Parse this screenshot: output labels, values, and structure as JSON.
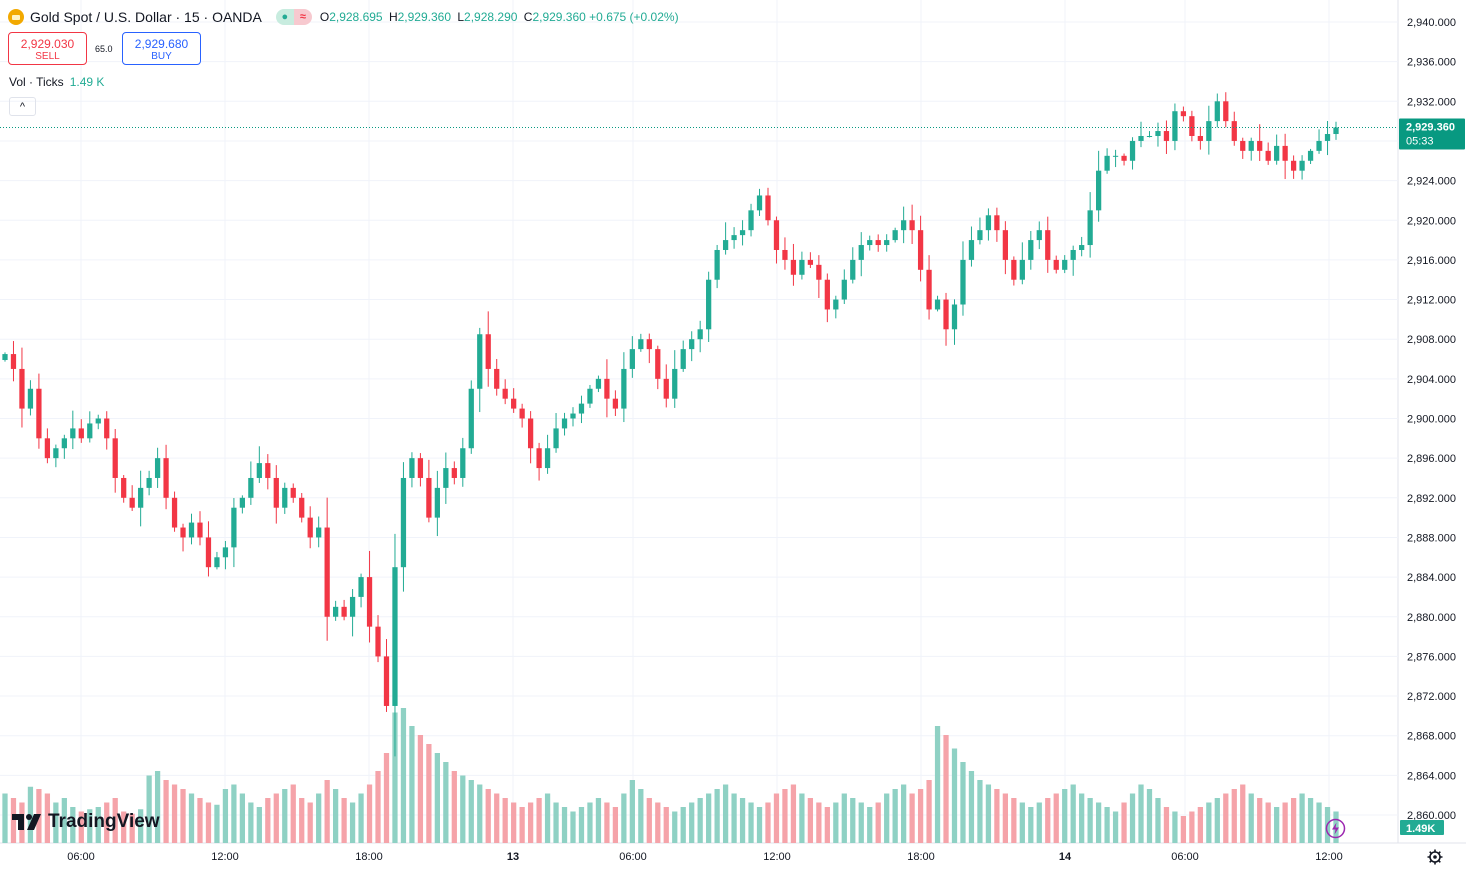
{
  "header": {
    "symbol_title": "Gold Spot / U.S. Dollar · 15 · OANDA",
    "o_label": "O",
    "o": "2,928.695",
    "h_label": "H",
    "h": "2,929.360",
    "l_label": "L",
    "l": "2,928.290",
    "c_label": "C",
    "c": "2,929.360",
    "change": "+0.675 (+0.02%)",
    "pill_left_glyph": "●",
    "pill_right_glyph": "≈"
  },
  "trade": {
    "sell_price": "2,929.030",
    "sell_label": "SELL",
    "spread": "65.0",
    "buy_price": "2,929.680",
    "buy_label": "BUY"
  },
  "volume_legend": {
    "label": "Vol · Ticks",
    "value": "1.49 K"
  },
  "collapse_glyph": "^",
  "brand": "TradingView",
  "colors": {
    "up": "#22ab94",
    "down": "#f23645",
    "up_vol": "#8fd1c4",
    "down_vol": "#f5a3a9",
    "last_price_bg": "#089981"
  },
  "chart_data": {
    "type": "candlestick",
    "series": [
      {
        "name": "Gold Spot / U.S. Dollar",
        "interval": "15"
      }
    ],
    "y_ticks": [
      "2,860.000",
      "2,864.000",
      "2,868.000",
      "2,872.000",
      "2,876.000",
      "2,880.000",
      "2,884.000",
      "2,888.000",
      "2,892.000",
      "2,896.000",
      "2,900.000",
      "2,904.000",
      "2,908.000",
      "2,912.000",
      "2,916.000",
      "2,920.000",
      "2,924.000",
      "2,928.000",
      "2,932.000",
      "2,936.000",
      "2,940.000"
    ],
    "x_ticks": [
      "06:00",
      "12:00",
      "18:00",
      "13",
      "06:00",
      "12:00",
      "18:00",
      "14",
      "06:00",
      "12:00"
    ],
    "ylim": [
      2858,
      2941.5
    ],
    "last_price": "2,929.360",
    "countdown": "05:33",
    "volume_last": "1.49K",
    "close_path": [
      2906.5,
      2905.0,
      2901.0,
      2903.0,
      2898.0,
      2896.0,
      2897.0,
      2898.0,
      2899.0,
      2898.0,
      2899.5,
      2900.0,
      2898.0,
      2894.0,
      2892.0,
      2891.0,
      2893.0,
      2894.0,
      2896.0,
      2892.0,
      2889.0,
      2888.0,
      2889.5,
      2888.0,
      2885.0,
      2886.0,
      2887.0,
      2891.0,
      2892.0,
      2894.0,
      2895.5,
      2894.0,
      2891.0,
      2893.0,
      2892.0,
      2890.0,
      2888.0,
      2889.0,
      2880.0,
      2881.0,
      2880.0,
      2882.0,
      2884.0,
      2879.0,
      2876.0,
      2871.0,
      2885.0,
      2894.0,
      2896.0,
      2894.0,
      2890.0,
      2893.0,
      2895.0,
      2894.0,
      2897.0,
      2903.0,
      2908.5,
      2905.0,
      2903.0,
      2902.0,
      2901.0,
      2900.0,
      2897.0,
      2895.0,
      2897.0,
      2899.0,
      2900.0,
      2900.5,
      2901.5,
      2903.0,
      2904.0,
      2902.0,
      2901.0,
      2905.0,
      2907.0,
      2908.0,
      2907.0,
      2904.0,
      2902.0,
      2905.0,
      2907.0,
      2908.0,
      2909.0,
      2914.0,
      2917.0,
      2918.0,
      2918.5,
      2919.0,
      2921.0,
      2922.5,
      2920.0,
      2917.0,
      2916.0,
      2914.5,
      2916.0,
      2915.5,
      2914.0,
      2911.0,
      2912.0,
      2914.0,
      2916.0,
      2917.5,
      2918.0,
      2917.5,
      2918.0,
      2919.0,
      2920.0,
      2919.0,
      2915.0,
      2911.0,
      2912.0,
      2909.0,
      2911.5,
      2916.0,
      2918.0,
      2919.0,
      2920.5,
      2919.0,
      2916.0,
      2914.0,
      2916.0,
      2918.0,
      2919.0,
      2916.0,
      2915.0,
      2916.0,
      2917.0,
      2917.5,
      2921.0,
      2925.0,
      2926.5,
      2926.5,
      2926.0,
      2928.0,
      2928.5,
      2928.5,
      2929.0,
      2928.0,
      2931.0,
      2930.5,
      2928.5,
      2928.0,
      2930.0,
      2932.0,
      2930.0,
      2928.0,
      2927.0,
      2928.0,
      2927.0,
      2926.0,
      2927.5,
      2926.0,
      2925.0,
      2926.0,
      2927.0,
      2928.0,
      2928.7,
      2929.36
    ],
    "volume": [
      22,
      20,
      18,
      25,
      24,
      22,
      18,
      20,
      16,
      14,
      15,
      16,
      18,
      20,
      14,
      13,
      15,
      30,
      32,
      28,
      26,
      24,
      22,
      20,
      18,
      17,
      24,
      26,
      22,
      18,
      16,
      20,
      22,
      24,
      26,
      20,
      18,
      22,
      28,
      24,
      20,
      18,
      22,
      26,
      32,
      40,
      58,
      60,
      52,
      48,
      44,
      40,
      36,
      32,
      30,
      28,
      26,
      24,
      22,
      20,
      18,
      16,
      18,
      20,
      22,
      18,
      16,
      14,
      16,
      18,
      20,
      18,
      16,
      22,
      28,
      24,
      20,
      18,
      16,
      14,
      16,
      18,
      20,
      22,
      24,
      26,
      22,
      20,
      18,
      16,
      18,
      22,
      24,
      26,
      22,
      20,
      18,
      16,
      18,
      22,
      20,
      18,
      16,
      18,
      22,
      24,
      26,
      22,
      24,
      28,
      52,
      48,
      42,
      36,
      32,
      28,
      26,
      24,
      22,
      20,
      18,
      16,
      18,
      20,
      22,
      24,
      26,
      22,
      20,
      18,
      16,
      14,
      18,
      22,
      26,
      24,
      20,
      16,
      14,
      12,
      14,
      16,
      18,
      20,
      22,
      24,
      26,
      22,
      20,
      18,
      16,
      18,
      20,
      22,
      20,
      18,
      16,
      14
    ]
  }
}
